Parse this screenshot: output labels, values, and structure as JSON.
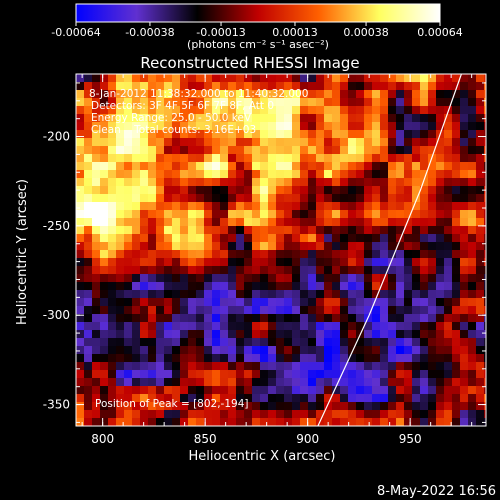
{
  "chart_data": {
    "type": "heatmap",
    "title": "Reconstructed RHESSI Image",
    "xlabel": "Heliocentric X (arcsec)",
    "ylabel": "Heliocentric Y (arcsec)",
    "xlim": [
      787,
      987
    ],
    "ylim": [
      -362,
      -165
    ],
    "x_ticks": [
      800,
      850,
      900,
      950
    ],
    "y_ticks": [
      -350,
      -300,
      -250,
      -200
    ],
    "colorbar": {
      "range": [
        -0.00064,
        0.00064
      ],
      "tick_values": [
        -0.00064,
        -0.00038,
        -0.00013,
        0.00013,
        0.00038,
        0.00064
      ],
      "tick_labels": [
        "-0.00064",
        "-0.00038",
        "-0.00013",
        "0.00013",
        "0.00038",
        "0.00064"
      ],
      "unit_label": "(photons cm⁻² s⁻¹ asec⁻²)",
      "colors": [
        "#0000ff",
        "#6030d0",
        "#000000",
        "#c00000",
        "#ff6000",
        "#ffff60",
        "#ffffff"
      ]
    },
    "annotations": {
      "time_range": "8-Jan-2012 11:38:32.000 to 11:40:32.000",
      "detectors": "Detectors: 3F 4F 5F 6F 7F 8F, Att 0",
      "energy_range": "Energy Range: 25.0 - 50.0 keV",
      "method": "Clean    Total counts: 3.16E+03",
      "peak": "Position of Peak = [802,-194]"
    },
    "peak": [
      802,
      -194
    ],
    "limb_curve": [
      [
        905,
        -362
      ],
      [
        930,
        -300
      ],
      [
        955,
        -230
      ],
      [
        975,
        -165
      ]
    ],
    "grid": false
  },
  "footer": {
    "date": "8-May-2022 16:56"
  }
}
